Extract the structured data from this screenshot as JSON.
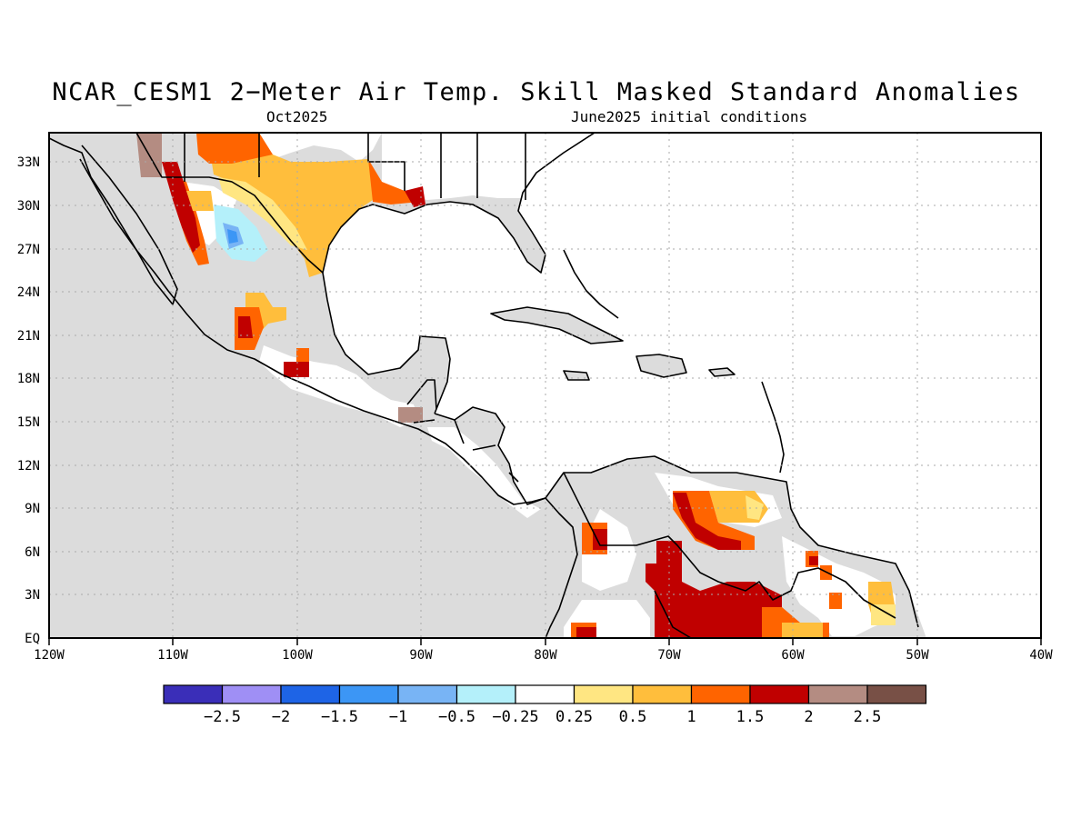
{
  "title": "NCAR_CESM1 2−Meter Air Temp. Skill Masked Standard Anomalies",
  "target_month": "Oct2025",
  "init_conditions": "June2025 initial conditions",
  "map": {
    "lon_labels": [
      "120W",
      "110W",
      "100W",
      "90W",
      "80W",
      "70W",
      "60W",
      "50W",
      "40W"
    ],
    "lat_labels": [
      "EQ",
      "3N",
      "6N",
      "9N",
      "12N",
      "15N",
      "18N",
      "21N",
      "24N",
      "27N",
      "30N",
      "33N"
    ],
    "lon_range": [
      -120,
      -40
    ],
    "lat_range": [
      0,
      35
    ],
    "land_color": "#dcdcdc",
    "coast_color": "#000000"
  },
  "legend": {
    "colors": [
      "#3a2eb8",
      "#9f8ff5",
      "#1e64e6",
      "#3c96f5",
      "#78b4f5",
      "#b4f0fa",
      "#ffffff",
      "#ffe682",
      "#ffbe3c",
      "#ff6400",
      "#c00000",
      "#b48c82",
      "#785046"
    ],
    "labels": [
      "−2.5",
      "−2",
      "−1.5",
      "−1",
      "−0.5",
      "−0.25",
      "0.25",
      "0.5",
      "1",
      "1.5",
      "2",
      "2.5"
    ]
  },
  "anomaly_colors": {
    "c025": "#ffe682",
    "c05": "#ffbe3c",
    "c1": "#ff6400",
    "c15": "#c00000",
    "c2": "#b48c82",
    "cm025": "#b4f0fa",
    "cm05": "#78b4f5",
    "cm1": "#3c96f5"
  }
}
